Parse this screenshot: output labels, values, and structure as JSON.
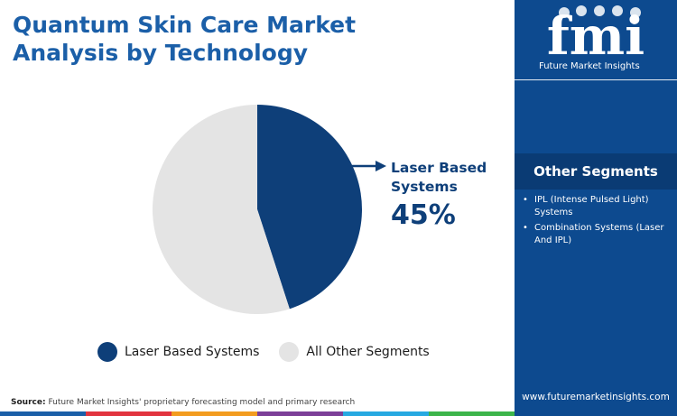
{
  "title": "Quantum Skin Care Market Analysis by Technology",
  "chart_data": {
    "type": "pie",
    "slices": [
      {
        "name": "Laser Based Systems",
        "value": 45,
        "color": "#0e3f79"
      },
      {
        "name": "All Other Segments",
        "value": 55,
        "color": "#e4e4e4"
      }
    ],
    "callout": {
      "label": "Laser Based Systems",
      "value": "45%"
    },
    "legend": [
      "Laser Based Systems",
      "All Other Segments"
    ],
    "legend_position": "bottom"
  },
  "side_panel": {
    "logo_text": "fmi",
    "logo_caption": "Future Market Insights",
    "other_segments_title": "Other Segments",
    "other_segments": [
      "IPL (Intense Pulsed Light) Systems",
      "Combination Systems (Laser And IPL)"
    ],
    "website": "www.futuremarketinsights.com"
  },
  "source": {
    "label": "Source:",
    "text": "Future Market Insights' proprietary forecasting model and primary research"
  },
  "colors": {
    "primary": "#0e3f79",
    "title": "#1b5fa8",
    "panel": "#0d4a8f",
    "other": "#e4e4e4",
    "bottom_bar": [
      "#1b5fa8",
      "#e2343f",
      "#f39c1f",
      "#7c3f98",
      "#27a9e1",
      "#3cb54a"
    ]
  }
}
